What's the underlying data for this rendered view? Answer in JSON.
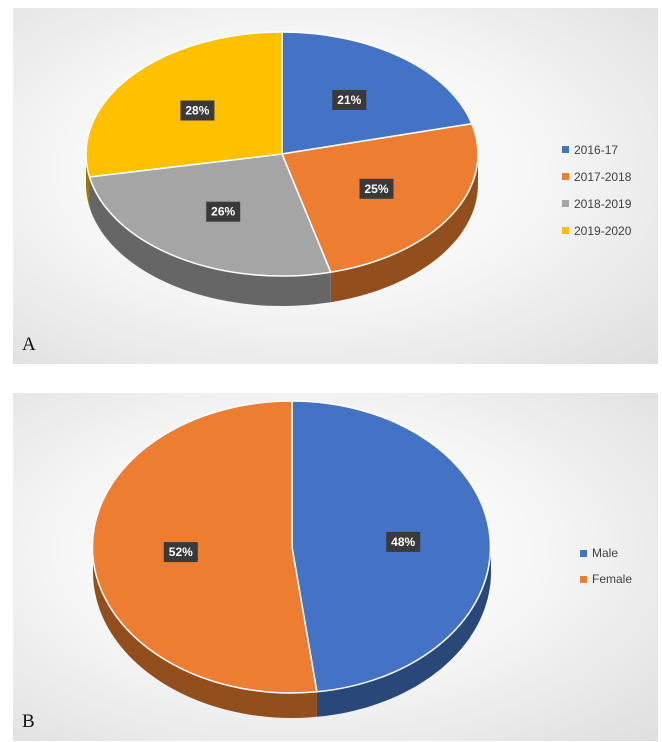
{
  "chart_data": [
    {
      "type": "pie",
      "panel_label": "A",
      "categories": [
        "2016-17",
        "2017-2018",
        "2018-2019",
        "2019-2020"
      ],
      "values": [
        21,
        25,
        26,
        28
      ],
      "data_labels": [
        "21%",
        "25%",
        "26%",
        "28%"
      ],
      "colors": [
        "#4472C4",
        "#ED7D31",
        "#A5A5A5",
        "#FFC000"
      ],
      "legend_position": "right",
      "style": "3d"
    },
    {
      "type": "pie",
      "panel_label": "B",
      "categories": [
        "Male",
        "Female"
      ],
      "values": [
        48,
        52
      ],
      "data_labels": [
        "48%",
        "52%"
      ],
      "colors": [
        "#4472C4",
        "#ED7D31"
      ],
      "legend_position": "right",
      "style": "3d"
    }
  ]
}
